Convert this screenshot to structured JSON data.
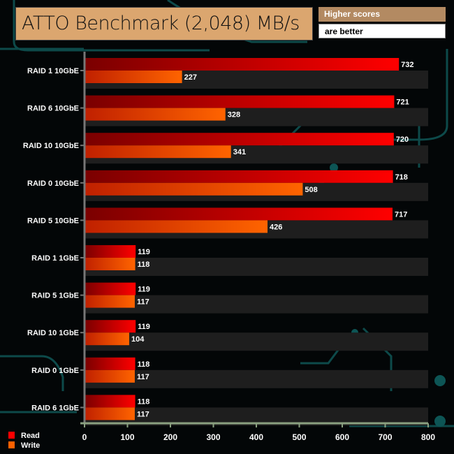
{
  "chart_data": {
    "type": "bar",
    "orientation": "horizontal",
    "title": "ATTO Benchmark (2,048) MB/s",
    "note": [
      "Higher scores",
      "are better"
    ],
    "categories": [
      "RAID 1 10GbE",
      "RAID 6 10GbE",
      "RAID 10 10GbE",
      "RAID 0 10GbE",
      "RAID 5 10GbE",
      "RAID 1 1GbE",
      "RAID 5 1GbE",
      "RAID 10 1GbE",
      "RAID 0 1GbE",
      "RAID 6 1GbE"
    ],
    "series": [
      {
        "name": "Read",
        "color": "#ff0000",
        "values": [
          732,
          721,
          720,
          718,
          717,
          119,
          119,
          119,
          118,
          118
        ]
      },
      {
        "name": "Write",
        "color": "#ff6000",
        "values": [
          227,
          328,
          341,
          508,
          426,
          118,
          117,
          104,
          117,
          117
        ]
      }
    ],
    "xlim": [
      0,
      800
    ],
    "xticks": [
      0,
      100,
      200,
      300,
      400,
      500,
      600,
      700,
      800
    ],
    "legend": "bottom-left"
  }
}
